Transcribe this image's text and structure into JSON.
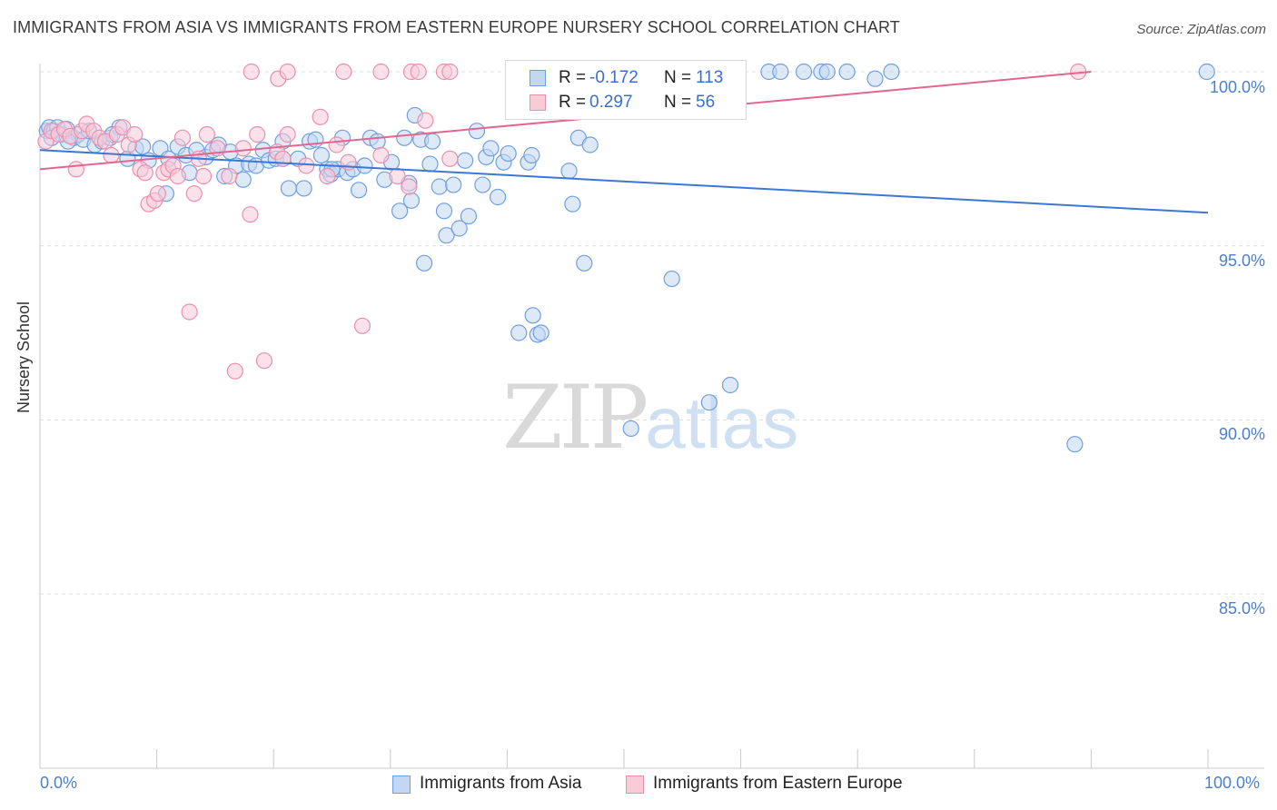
{
  "header": {
    "title": "IMMIGRANTS FROM ASIA VS IMMIGRANTS FROM EASTERN EUROPE NURSERY SCHOOL CORRELATION CHART",
    "source": "Source: ZipAtlas.com"
  },
  "watermark": {
    "zip": "ZIP",
    "atlas": "atlas"
  },
  "legend": {
    "rows": [
      {
        "r_label": "R =",
        "r_value": "-0.172",
        "n_label": "N =",
        "n_value": "113",
        "color": "#6f9fe0",
        "fill": "#c3d7f3"
      },
      {
        "r_label": "R =",
        "r_value": "0.297",
        "n_label": "N =",
        "n_value": "56",
        "color": "#ec8fab",
        "fill": "#f8cbd8"
      }
    ]
  },
  "bottom_legend": [
    {
      "label": "Immigrants from Asia",
      "color": "#6f9fe0",
      "fill": "#c3d7f3"
    },
    {
      "label": "Immigrants from Eastern Europe",
      "color": "#ec8fab",
      "fill": "#f8cbd8"
    }
  ],
  "chart_data": {
    "type": "scatter",
    "title": "IMMIGRANTS FROM ASIA VS IMMIGRANTS FROM EASTERN EUROPE NURSERY SCHOOL CORRELATION CHART",
    "xlabel": "",
    "ylabel": "Nursery School",
    "xlim": [
      0,
      100
    ],
    "ylim": [
      80.0,
      100.8
    ],
    "x_tick_labels": [
      "0.0%",
      "100.0%"
    ],
    "y_ticks": [
      85.0,
      90.0,
      95.0,
      100.0
    ],
    "y_tick_labels": [
      "85.0%",
      "90.0%",
      "95.0%",
      "100.0%"
    ],
    "grid": true,
    "legend_position": "top-center",
    "series": [
      {
        "name": "Immigrants from Asia",
        "color": "#3a78d4",
        "marker_fill": "#c3d7f3",
        "marker_edge": "#6f9fe0",
        "trend": {
          "x": [
            0,
            100
          ],
          "y": [
            97.75,
            95.95
          ]
        },
        "points": [
          [
            0.6,
            98.3
          ],
          [
            0.8,
            98.4
          ],
          [
            1.2,
            98.3
          ],
          [
            1.5,
            98.4
          ],
          [
            1.9,
            98.2
          ],
          [
            2.3,
            98.35
          ],
          [
            2.9,
            98.1
          ],
          [
            3.3,
            98.2
          ],
          [
            3.7,
            98.05
          ],
          [
            4.2,
            98.3
          ],
          [
            4.7,
            97.9
          ],
          [
            5.3,
            98.0
          ],
          [
            6.0,
            98.1
          ],
          [
            6.8,
            98.4
          ],
          [
            7.5,
            97.5
          ],
          [
            8.2,
            97.8
          ],
          [
            8.8,
            97.85
          ],
          [
            9.3,
            97.45
          ],
          [
            10.3,
            97.8
          ],
          [
            11.0,
            97.5
          ],
          [
            10.8,
            96.5
          ],
          [
            11.8,
            97.85
          ],
          [
            12.5,
            97.6
          ],
          [
            12.8,
            97.1
          ],
          [
            13.4,
            97.75
          ],
          [
            14.2,
            97.55
          ],
          [
            14.8,
            97.75
          ],
          [
            15.3,
            97.9
          ],
          [
            15.8,
            97.0
          ],
          [
            16.3,
            97.7
          ],
          [
            16.8,
            97.3
          ],
          [
            17.4,
            96.9
          ],
          [
            17.9,
            97.35
          ],
          [
            18.5,
            97.3
          ],
          [
            19.1,
            97.75
          ],
          [
            19.6,
            97.45
          ],
          [
            20.2,
            97.5
          ],
          [
            20.8,
            97.5
          ],
          [
            21.3,
            96.65
          ],
          [
            22.1,
            97.5
          ],
          [
            22.6,
            96.65
          ],
          [
            23.1,
            98.0
          ],
          [
            23.6,
            98.05
          ],
          [
            24.1,
            97.6
          ],
          [
            24.6,
            97.2
          ],
          [
            24.9,
            97.05
          ],
          [
            25.5,
            97.2
          ],
          [
            25.9,
            98.1
          ],
          [
            26.3,
            97.1
          ],
          [
            26.8,
            97.2
          ],
          [
            27.3,
            96.6
          ],
          [
            27.8,
            97.3
          ],
          [
            28.3,
            98.1
          ],
          [
            28.9,
            98.0
          ],
          [
            29.5,
            96.9
          ],
          [
            30.1,
            97.4
          ],
          [
            30.8,
            96.0
          ],
          [
            31.2,
            98.1
          ],
          [
            31.6,
            96.8
          ],
          [
            31.8,
            96.3
          ],
          [
            32.1,
            98.75
          ],
          [
            32.6,
            98.05
          ],
          [
            32.9,
            94.5
          ],
          [
            33.6,
            98.0
          ],
          [
            34.2,
            96.7
          ],
          [
            34.6,
            96.0
          ],
          [
            34.8,
            95.3
          ],
          [
            35.4,
            96.75
          ],
          [
            35.9,
            95.5
          ],
          [
            36.4,
            97.45
          ],
          [
            36.7,
            95.85
          ],
          [
            37.4,
            98.3
          ],
          [
            37.9,
            96.75
          ],
          [
            38.2,
            97.55
          ],
          [
            38.6,
            97.8
          ],
          [
            39.2,
            96.4
          ],
          [
            39.7,
            97.4
          ],
          [
            40.1,
            97.65
          ],
          [
            41.0,
            92.5
          ],
          [
            41.8,
            97.4
          ],
          [
            42.1,
            97.6
          ],
          [
            42.6,
            92.45
          ],
          [
            42.2,
            93.0
          ],
          [
            42.9,
            92.5
          ],
          [
            45.3,
            97.15
          ],
          [
            45.6,
            96.2
          ],
          [
            46.1,
            98.1
          ],
          [
            46.6,
            94.5
          ],
          [
            47.1,
            97.9
          ],
          [
            50.6,
            89.75
          ],
          [
            51.1,
            99.9
          ],
          [
            52.1,
            100.0
          ],
          [
            53.6,
            100.0
          ],
          [
            54.1,
            94.05
          ],
          [
            57.3,
            90.5
          ],
          [
            59.1,
            91.0
          ],
          [
            62.4,
            100.0
          ],
          [
            63.4,
            100.0
          ],
          [
            65.4,
            100.0
          ],
          [
            66.9,
            100.0
          ],
          [
            67.4,
            100.0
          ],
          [
            69.1,
            100.0
          ],
          [
            72.9,
            100.0
          ],
          [
            88.6,
            89.3
          ],
          [
            99.9,
            100.0
          ],
          [
            57.2,
            99.9
          ],
          [
            71.5,
            99.8
          ],
          [
            20.8,
            98.0
          ],
          [
            25.0,
            97.2
          ],
          [
            33.4,
            97.35
          ],
          [
            2.4,
            98.0
          ],
          [
            6.2,
            98.2
          ],
          [
            1.0,
            98.1
          ]
        ]
      },
      {
        "name": "Immigrants from Eastern Europe",
        "color": "#e2668f",
        "marker_fill": "#f8cbd8",
        "marker_edge": "#ec8fab",
        "trend": {
          "x": [
            0,
            90
          ],
          "y": [
            97.2,
            100.0
          ]
        },
        "points": [
          [
            0.5,
            98.0
          ],
          [
            1.0,
            98.3
          ],
          [
            1.6,
            98.2
          ],
          [
            2.1,
            98.35
          ],
          [
            2.6,
            98.15
          ],
          [
            3.1,
            97.2
          ],
          [
            3.6,
            98.3
          ],
          [
            4.0,
            98.5
          ],
          [
            4.6,
            98.3
          ],
          [
            5.1,
            98.1
          ],
          [
            5.6,
            98.0
          ],
          [
            6.1,
            97.6
          ],
          [
            6.6,
            98.2
          ],
          [
            7.1,
            98.4
          ],
          [
            7.6,
            97.9
          ],
          [
            8.1,
            98.2
          ],
          [
            8.6,
            97.2
          ],
          [
            9.0,
            97.1
          ],
          [
            9.3,
            96.2
          ],
          [
            9.8,
            96.3
          ],
          [
            10.1,
            96.5
          ],
          [
            10.6,
            97.1
          ],
          [
            11.0,
            97.2
          ],
          [
            11.4,
            97.3
          ],
          [
            11.8,
            97.0
          ],
          [
            12.2,
            98.1
          ],
          [
            12.8,
            93.1
          ],
          [
            13.2,
            96.5
          ],
          [
            13.6,
            97.5
          ],
          [
            14.0,
            97.0
          ],
          [
            14.3,
            98.2
          ],
          [
            15.2,
            97.8
          ],
          [
            16.2,
            97.0
          ],
          [
            16.7,
            91.4
          ],
          [
            17.4,
            97.8
          ],
          [
            18.0,
            95.9
          ],
          [
            18.6,
            98.2
          ],
          [
            19.2,
            91.7
          ],
          [
            20.3,
            97.7
          ],
          [
            20.8,
            97.5
          ],
          [
            21.2,
            98.2
          ],
          [
            22.8,
            97.3
          ],
          [
            24.0,
            98.7
          ],
          [
            24.6,
            97.0
          ],
          [
            25.4,
            97.9
          ],
          [
            26.4,
            97.4
          ],
          [
            27.6,
            92.7
          ],
          [
            29.2,
            97.6
          ],
          [
            30.6,
            97.0
          ],
          [
            31.6,
            96.7
          ],
          [
            33.0,
            98.6
          ],
          [
            35.1,
            97.5
          ],
          [
            18.1,
            100.0
          ],
          [
            20.4,
            99.8
          ],
          [
            21.2,
            100.0
          ],
          [
            26.0,
            100.0
          ],
          [
            29.2,
            100.0
          ],
          [
            31.8,
            100.0
          ],
          [
            32.4,
            100.0
          ],
          [
            34.6,
            100.0
          ],
          [
            35.1,
            100.0
          ],
          [
            88.9,
            100.0
          ]
        ]
      }
    ]
  }
}
